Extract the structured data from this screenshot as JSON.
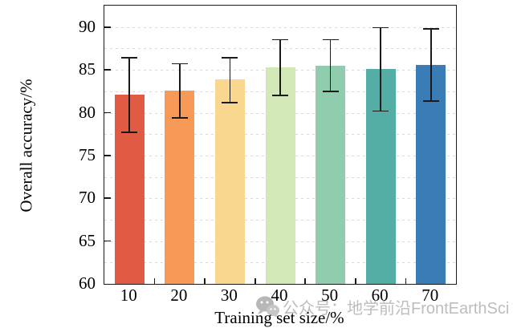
{
  "chart_data": {
    "type": "bar",
    "title": "",
    "xlabel": "Training set size/%",
    "ylabel": "Overall accuracy/%",
    "categories": [
      "10",
      "20",
      "30",
      "40",
      "50",
      "60",
      "70"
    ],
    "values": [
      82.1,
      82.6,
      83.9,
      85.3,
      85.5,
      85.1,
      85.6
    ],
    "error_upper": [
      86.5,
      85.8,
      86.5,
      88.6,
      88.6,
      90.0,
      89.9
    ],
    "error_lower": [
      77.6,
      79.3,
      81.1,
      81.9,
      82.4,
      80.1,
      81.3
    ],
    "bar_colors": [
      "#E05A44",
      "#F79A58",
      "#FAD78E",
      "#D3E8B7",
      "#8FCDAE",
      "#55AEA5",
      "#3A7CB5"
    ],
    "ylim": [
      60,
      92.5
    ],
    "yticks": [
      60,
      65,
      70,
      75,
      80,
      85,
      90
    ],
    "grid": {
      "step": 2.5,
      "style": "dashed",
      "color": "#d9d9d9"
    },
    "legend": "none",
    "error_bar_color": "#1a1a1a"
  },
  "watermark": {
    "icon": "wechat-icon",
    "text": "公众号：地学前沿FrontEarthSci",
    "color": "#bdbdbd"
  }
}
